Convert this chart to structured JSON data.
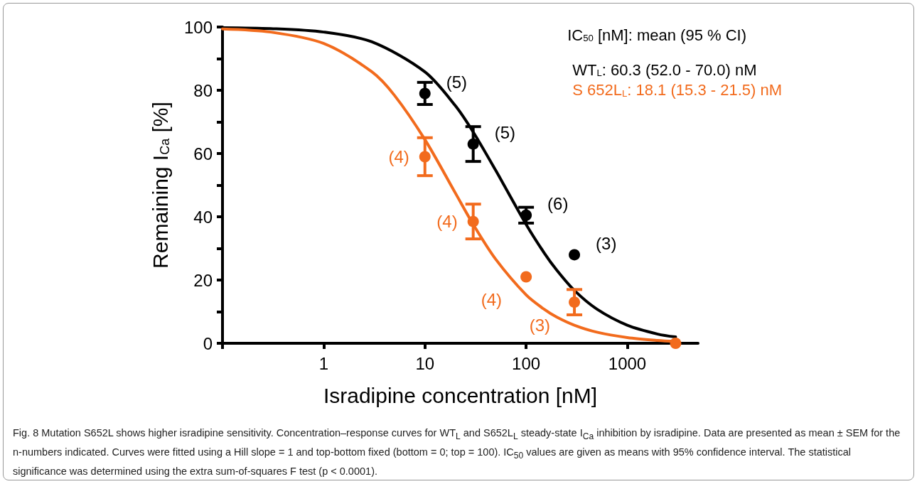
{
  "chart_data": {
    "type": "scatter",
    "xlabel": "Isradipine concentration [nM]",
    "ylabel": "Remaining I$_{Ca}$ [%]",
    "legend_title": "IC$_{50}$ [nM]: mean (95 % CI)",
    "log": "x",
    "xlim": [
      0.1,
      5000
    ],
    "xticks": [
      {
        "value": 0.1,
        "label": null
      },
      1,
      10,
      100,
      1000
    ],
    "ylim": [
      0,
      100
    ],
    "yticks": [
      0,
      20,
      40,
      60,
      80,
      100
    ],
    "grid": false,
    "legend": "top right",
    "marker": "circle",
    "series": [
      {
        "color": "#000000",
        "x": [
          10,
          30,
          100,
          300
        ],
        "values": [
          79,
          63,
          40.5,
          28
        ],
        "errors": [
          3.5,
          5.5,
          2.5,
          null
        ]
      },
      {
        "color": "#f26b1d",
        "x": [
          10,
          30,
          100,
          300,
          3000
        ],
        "values": [
          59,
          38.5,
          21,
          13,
          0
        ],
        "errors": [
          6,
          5.5,
          null,
          4,
          null
        ]
      },
      {
        "type": "line",
        "name": "WT$_{L}$: 60.3 (52.0 - 70.0) nM",
        "color": "#000000",
        "marker": "none",
        "x": [
          0.1,
          0.3,
          1,
          3,
          10,
          20,
          30,
          50,
          100,
          150,
          200,
          300,
          500,
          1000,
          2000,
          3000
        ],
        "values": [
          99.8,
          99.5,
          98.4,
          95.3,
          85.8,
          75.1,
          66.8,
          54.7,
          37.6,
          28.7,
          23.2,
          16.7,
          10.8,
          5.7,
          2.9,
          2.0
        ]
      },
      {
        "type": "line",
        "name": "S 652L$_{L}$: 18.1 (15.3 - 21.5) nM",
        "color": "#f26b1d",
        "marker": "none",
        "x": [
          0.1,
          0.3,
          1,
          3,
          5,
          10,
          20,
          30,
          50,
          100,
          150,
          200,
          300,
          500,
          1000,
          2000,
          3000
        ],
        "values": [
          99.4,
          98.4,
          94.8,
          85.8,
          78.4,
          64.4,
          47.5,
          37.6,
          26.6,
          15.3,
          10.8,
          8.3,
          5.7,
          3.5,
          1.8,
          0.9,
          0.6
        ]
      }
    ],
    "annotations": [
      {
        "text": "(5)",
        "x": 10,
        "y": 79
      },
      {
        "text": "(5)",
        "x": 30,
        "y": 63
      },
      {
        "text": "(6)",
        "x": 100,
        "y": 40.5
      },
      {
        "text": "(3)",
        "x": 300,
        "y": 28
      },
      {
        "text": "(4)",
        "x": 10,
        "y": 59
      },
      {
        "text": "(4)",
        "x": 30,
        "y": 38.5
      },
      {
        "text": "(4)",
        "x": 100,
        "y": 21
      },
      {
        "text": "(3)",
        "x": 300,
        "y": 13
      },
      "Fig. 8 Mutation S652L shows higher isradipine sensitivity. Concentration–response curves for WT$_{L}$ and S652L$_{L}$ steady-state I$_{Ca}$ inhibition by isradipine. Data are presented as mean ± SEM for the n-numbers indicated. Curves were fitted using a Hill slope = 1 and top-bottom fixed (bottom = 0; top = 100). IC$_{50}$ values are given as means with 95% confidence interval. The statistical significance was determined using the extra sum-of-squares F test (p < 0.0001)."
    ]
  }
}
